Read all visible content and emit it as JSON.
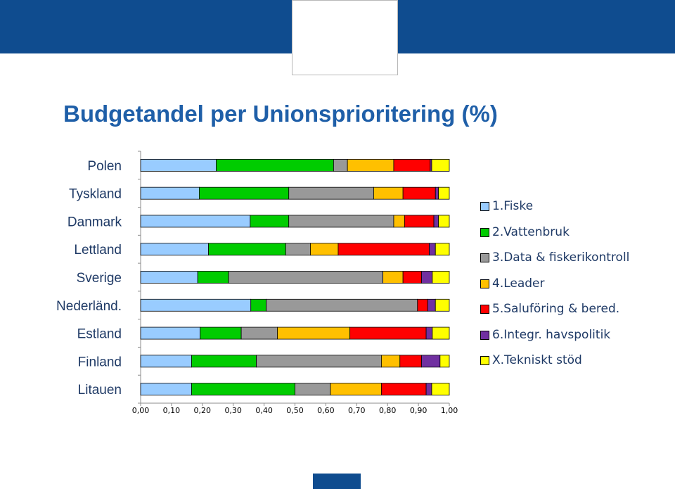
{
  "page": {
    "title": "Budgetandel per Unionsprioritering (%)"
  },
  "colors": {
    "band": "#0f4c8f",
    "title": "#1f5fa8"
  },
  "chart_data": {
    "type": "bar",
    "orientation": "horizontal",
    "stacked": true,
    "categories": [
      "Polen",
      "Tyskland",
      "Danmark",
      "Lettland",
      "Sverige",
      "Nederländ.",
      "Estland",
      "Finland",
      "Litauen"
    ],
    "series": [
      {
        "name": "1.Fiske",
        "color": "#99ccff",
        "values": [
          0.245,
          0.19,
          0.355,
          0.22,
          0.185,
          0.357,
          0.193,
          0.165,
          0.165
        ]
      },
      {
        "name": "2.Vattenbruk",
        "color": "#00cc00",
        "values": [
          0.38,
          0.29,
          0.125,
          0.25,
          0.1,
          0.05,
          0.133,
          0.21,
          0.335
        ]
      },
      {
        "name": "3.Data & fiskerikontroll",
        "color": "#999999",
        "values": [
          0.045,
          0.275,
          0.34,
          0.08,
          0.5,
          0.49,
          0.117,
          0.405,
          0.115
        ]
      },
      {
        "name": "4.Leader",
        "color": "#ffc000",
        "values": [
          0.15,
          0.095,
          0.035,
          0.09,
          0.065,
          0.0,
          0.235,
          0.06,
          0.165
        ]
      },
      {
        "name": "5.Saluföring & bered.",
        "color": "#ff0000",
        "values": [
          0.118,
          0.105,
          0.095,
          0.295,
          0.06,
          0.033,
          0.247,
          0.07,
          0.145
        ]
      },
      {
        "name": "6.Integr. havspolitik",
        "color": "#7030a0",
        "values": [
          0.005,
          0.01,
          0.015,
          0.02,
          0.035,
          0.025,
          0.02,
          0.06,
          0.018
        ]
      },
      {
        "name": "X.Tekniskt stöd",
        "color": "#ffff00",
        "values": [
          0.057,
          0.035,
          0.035,
          0.045,
          0.055,
          0.045,
          0.055,
          0.03,
          0.057
        ]
      }
    ],
    "xlim": [
      0,
      1
    ],
    "xticks": [
      "0,00",
      "0,10",
      "0,20",
      "0,30",
      "0,40",
      "0,50",
      "0,60",
      "0,70",
      "0,80",
      "0,90",
      "1,00"
    ],
    "legend": "right",
    "grid": false
  }
}
